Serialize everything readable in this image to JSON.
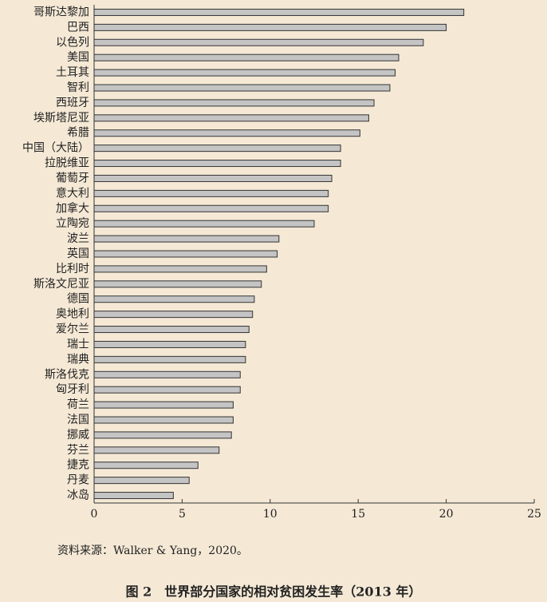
{
  "chart_data": {
    "type": "barh",
    "categories": [
      "哥斯达黎加",
      "巴西",
      "以色列",
      "美国",
      "土耳其",
      "智利",
      "西班牙",
      "埃斯塔尼亚",
      "希腊",
      "中国（大陆）",
      "拉脱维亚",
      "葡萄牙",
      "意大利",
      "加拿大",
      "立陶宛",
      "波兰",
      "英国",
      "比利时",
      "斯洛文尼亚",
      "德国",
      "奥地利",
      "爱尔兰",
      "瑞士",
      "瑞典",
      "斯洛伐克",
      "匈牙利",
      "荷兰",
      "法国",
      "挪威",
      "芬兰",
      "捷克",
      "丹麦",
      "冰岛"
    ],
    "values": [
      21.0,
      20.0,
      18.7,
      17.3,
      17.1,
      16.8,
      15.9,
      15.6,
      15.1,
      14.0,
      14.0,
      13.5,
      13.3,
      13.3,
      12.5,
      10.5,
      10.4,
      9.8,
      9.5,
      9.1,
      9.0,
      8.8,
      8.6,
      8.6,
      8.3,
      8.3,
      7.9,
      7.9,
      7.8,
      7.1,
      5.9,
      5.4,
      4.5
    ],
    "color": "#c4c4c4",
    "xlim": [
      0,
      25
    ],
    "xticks": [
      0,
      5,
      10,
      15,
      20,
      25
    ],
    "source": "资料来源：Walker & Yang，2020。",
    "caption": "图 2　世界部分国家的相对贫困发生率（2013 年）"
  }
}
